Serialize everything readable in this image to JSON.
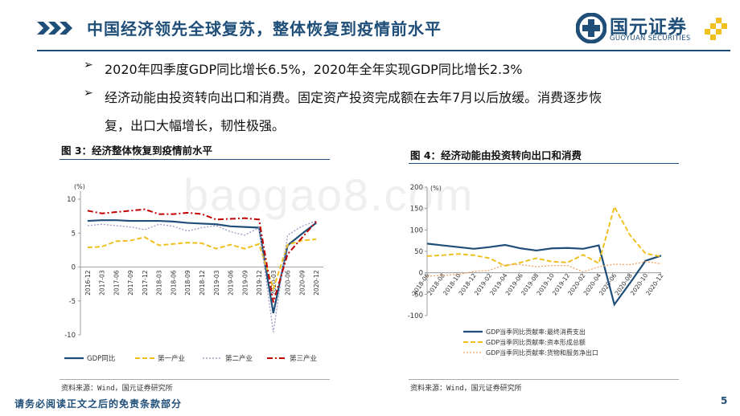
{
  "header": {
    "title": "中国经济领先全球复苏，整体恢复到疫情前水平",
    "logo": {
      "name": "国元证券",
      "subname": "GUOYUAN SECURITIES"
    }
  },
  "bullets": [
    {
      "mark": "➢",
      "text": "2020年四季度GDP同比增长6.5%，2020年全年实现GDP同比增长2.3%"
    },
    {
      "mark": "➢",
      "text": "经济动能由投资转向出口和消费。固定资产投资完成额在去年7月以后放缓。消费逐步恢"
    },
    {
      "mark": "",
      "text": "复，出口大幅增长，韧性极强。"
    }
  ],
  "figure3": {
    "title": "图 3：经济整体恢复到疫情前水平",
    "source": "资料来源：Wind，国元证券研究所"
  },
  "figure4": {
    "title": "图 4：经济动能由投资转向出口和消费",
    "source": "资料来源：Wind，国元证券研究所"
  },
  "watermark": "baogao8.com",
  "footer": {
    "note": "请务必阅读正文之后的免责条款部分",
    "page": "5"
  },
  "colors": {
    "navy": "#1f4e79",
    "gold": "#f0c020",
    "grey": "#a0a0c8",
    "red": "#c00000"
  },
  "chart_data": [
    {
      "type": "line",
      "title": "图 3：经济整体恢复到疫情前水平",
      "ylabel": "(%)",
      "ylim": [
        -10,
        10
      ],
      "yticks": [
        10,
        5,
        0,
        -5,
        -10
      ],
      "categories": [
        "2016-12",
        "2017-03",
        "2017-06",
        "2017-09",
        "2017-12",
        "2018-03",
        "2018-06",
        "2018-09",
        "2018-12",
        "2019-03",
        "2019-06",
        "2019-09",
        "2019-12",
        "2020-03",
        "2020-06",
        "2020-09",
        "2020-12"
      ],
      "series": [
        {
          "name": "GDP同比",
          "values": [
            6.8,
            6.9,
            6.9,
            6.8,
            6.8,
            6.8,
            6.7,
            6.5,
            6.4,
            6.3,
            6.0,
            5.9,
            5.8,
            -6.8,
            3.2,
            4.9,
            6.5
          ]
        },
        {
          "name": "第一产业",
          "values": [
            2.9,
            3.0,
            3.8,
            3.9,
            4.4,
            3.2,
            3.4,
            3.6,
            3.5,
            2.7,
            3.3,
            2.7,
            3.4,
            -3.2,
            3.3,
            3.9,
            4.1
          ]
        },
        {
          "name": "第二产业",
          "values": [
            6.1,
            6.3,
            6.1,
            5.9,
            5.5,
            6.3,
            6.0,
            5.3,
            5.8,
            6.1,
            5.2,
            4.7,
            5.8,
            -9.6,
            4.7,
            6.0,
            6.8
          ]
        },
        {
          "name": "第三产业",
          "values": [
            8.3,
            7.9,
            8.1,
            8.3,
            8.5,
            7.8,
            7.8,
            8.0,
            7.8,
            7.0,
            7.1,
            7.2,
            7.0,
            -5.2,
            1.9,
            4.3,
            6.7
          ]
        }
      ]
    },
    {
      "type": "line",
      "title": "图 4：经济动能由投资转向出口和消费",
      "ylabel": "(%)",
      "ylim": [
        -100,
        200
      ],
      "yticks": [
        200,
        150,
        100,
        50,
        0,
        -50,
        -100
      ],
      "categories": [
        "2018-06",
        "2018-08",
        "2018-10",
        "2018-12",
        "2019-02",
        "2019-04",
        "2019-06",
        "2019-08",
        "2019-10",
        "2019-12",
        "2020-02",
        "2020-04",
        "2020-06",
        "2020-08",
        "2020-10",
        "2020-12"
      ],
      "series": [
        {
          "name": "GDP当季同比贡献率:最终消费支出",
          "values": [
            68,
            64,
            60,
            56,
            60,
            65,
            57,
            52,
            57,
            58,
            56,
            64,
            -74,
            -24,
            28,
            40
          ]
        },
        {
          "name": "GDP当季同比贡献率:资本形成总额",
          "values": [
            39,
            41,
            44,
            41,
            34,
            16,
            24,
            34,
            26,
            24,
            42,
            22,
            154,
            88,
            45,
            38
          ]
        },
        {
          "name": "GDP当季同比贡献率:货物和服务净出口",
          "values": [
            -8,
            -6,
            -4,
            3,
            6,
            19,
            19,
            14,
            17,
            17,
            2,
            14,
            20,
            19,
            26,
            21
          ]
        }
      ]
    }
  ]
}
